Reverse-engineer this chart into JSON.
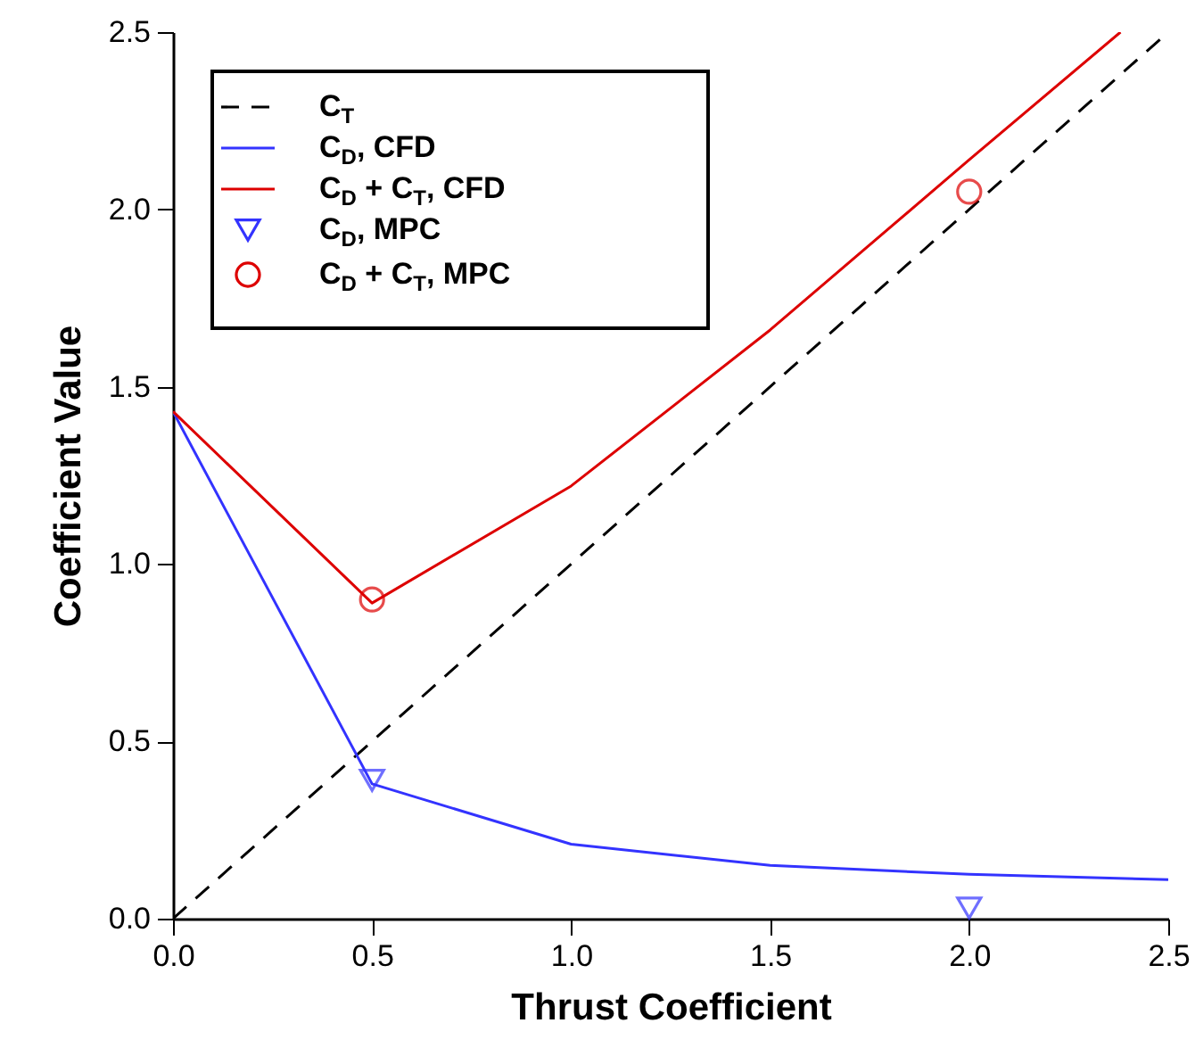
{
  "chart_data": {
    "type": "line",
    "xlabel": "Thrust Coefficient",
    "ylabel": "Coefficient Value",
    "xlim": [
      0,
      2.5
    ],
    "ylim": [
      0,
      2.5
    ],
    "xticks": [
      {
        "value": 0,
        "label": "0.0"
      },
      {
        "value": 0.5,
        "label": "0.5"
      },
      {
        "value": 1,
        "label": "1.0"
      },
      {
        "value": 1.5,
        "label": "1.5"
      },
      {
        "value": 2,
        "label": "2.0"
      },
      {
        "value": 2.5,
        "label": "2.5"
      }
    ],
    "yticks": [
      {
        "value": 0,
        "label": "0.0"
      },
      {
        "value": 0.5,
        "label": "0.5"
      },
      {
        "value": 1,
        "label": "1.0"
      },
      {
        "value": 1.5,
        "label": "1.5"
      },
      {
        "value": 2,
        "label": "2.0"
      },
      {
        "value": 2.5,
        "label": "2.5"
      }
    ],
    "legend": "top left",
    "grid": false,
    "series": [
      {
        "name": "C$_{T}$",
        "line_style": "dashed",
        "color": "#000000",
        "x": [
          0,
          2.5
        ],
        "values": [
          0,
          2.5
        ]
      },
      {
        "name": "C$_{D}$, CFD",
        "line_style": "solid",
        "color": "#3333ff",
        "x": [
          0,
          0.5,
          1,
          1.5,
          2,
          2.5
        ],
        "values": [
          1.43,
          0.38,
          0.21,
          0.15,
          0.125,
          0.11
        ]
      },
      {
        "name": "C$_{D}$ + C$_{T}$, CFD",
        "line_style": "solid",
        "color": "#dd0000",
        "x": [
          0,
          0.5,
          1,
          1.5,
          2,
          2.38
        ],
        "values": [
          1.43,
          0.89,
          1.22,
          1.66,
          2.14,
          2.5
        ]
      },
      {
        "name": "C$_{D}$, MPC",
        "type": "scatter",
        "marker": "triangle",
        "color": "#3333ff",
        "x": [
          0.5,
          2
        ],
        "values": [
          0.39,
          0.03
        ]
      },
      {
        "name": "C$_{D}$ + C$_{T}$, MPC",
        "type": "scatter",
        "marker": "circle",
        "color": "#dd0000",
        "x": [
          0.5,
          2
        ],
        "values": [
          0.9,
          2.05
        ]
      }
    ]
  }
}
